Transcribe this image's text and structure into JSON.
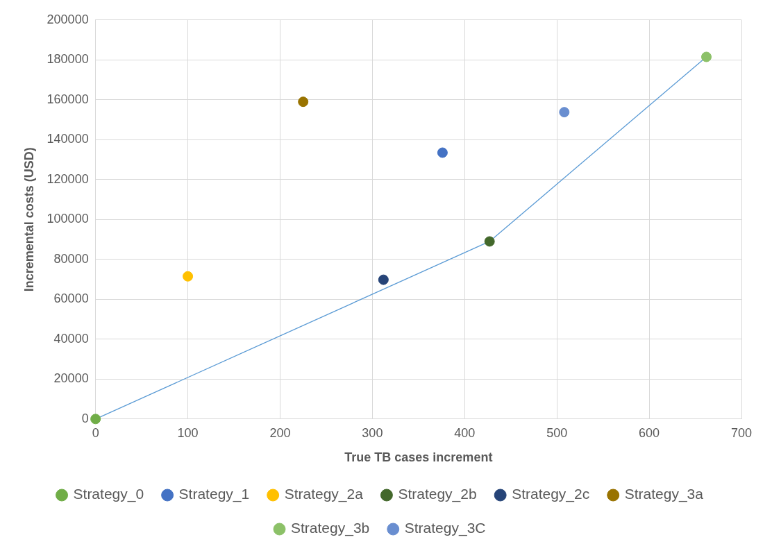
{
  "chart_data": {
    "type": "scatter",
    "xlabel": "True TB cases increment",
    "ylabel": "Incremental costs (USD)",
    "xlim": [
      0,
      700
    ],
    "xticks": [
      0,
      100,
      200,
      300,
      400,
      500,
      600,
      700
    ],
    "ylim": [
      0,
      200000
    ],
    "yticks": [
      0,
      20000,
      40000,
      60000,
      80000,
      100000,
      120000,
      140000,
      160000,
      180000,
      200000
    ],
    "grid": true,
    "legend": "bottom",
    "marker": "circle",
    "series": [
      {
        "name": "Strategy_0",
        "color": "#70ad47",
        "x": [
          0
        ],
        "values": [
          0
        ]
      },
      {
        "name": "Strategy_1",
        "color": "#4472c4",
        "x": [
          376
        ],
        "values": [
          133500
        ]
      },
      {
        "name": "Strategy_2a",
        "color": "#ffc000",
        "x": [
          100
        ],
        "values": [
          71500
        ]
      },
      {
        "name": "Strategy_2b",
        "color": "#43682b",
        "x": [
          427
        ],
        "values": [
          89000
        ]
      },
      {
        "name": "Strategy_2c",
        "color": "#264478",
        "x": [
          312
        ],
        "values": [
          69800
        ]
      },
      {
        "name": "Strategy_3a",
        "color": "#997300",
        "x": [
          225
        ],
        "values": [
          159000
        ]
      },
      {
        "name": "Strategy_3b",
        "color": "#8cc168",
        "x": [
          662
        ],
        "values": [
          181500
        ]
      },
      {
        "name": "Strategy_3C",
        "color": "#698ed0",
        "x": [
          508
        ],
        "values": [
          153800
        ]
      },
      {
        "type": "line",
        "marker": "none",
        "color": "#5b9bd5",
        "x": [
          0,
          427,
          662
        ],
        "values": [
          0,
          89000,
          181500
        ]
      }
    ]
  }
}
